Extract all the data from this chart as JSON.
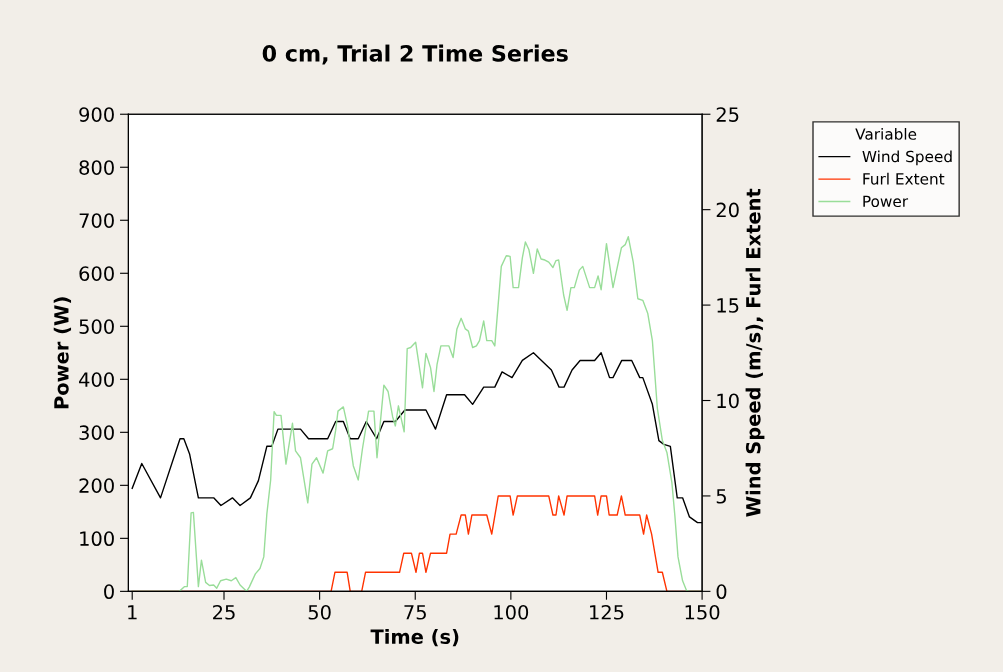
{
  "chart_data": {
    "type": "line",
    "title": "0 cm, Trial 2 Time Series",
    "xlabel": "Time (s)",
    "ylabel": "Power (W)",
    "y2label": "Wind Speed (m/s), Furl Extent",
    "legend_title": "Variable",
    "legend": "top right",
    "xlim": [
      0,
      150
    ],
    "xticks": [
      1,
      25,
      50,
      75,
      100,
      125,
      150
    ],
    "ylim": [
      0,
      900
    ],
    "yticks": [
      0,
      100,
      200,
      300,
      400,
      500,
      600,
      700,
      800,
      900
    ],
    "y2lim": [
      0,
      25
    ],
    "y2ticks": [
      0,
      5,
      10,
      15,
      20,
      25
    ],
    "grid": false,
    "marker": "none",
    "line_style": "solid",
    "series": [
      {
        "name": "Wind Speed",
        "color": "#000000",
        "axis": "y2",
        "x": [
          1,
          3.5,
          8.4,
          13.5,
          14.5,
          16.0,
          18.3,
          22.3,
          24.2,
          27.2,
          29.2,
          31.9,
          34.0,
          36.2,
          37.5,
          39.1,
          45.0,
          47.1,
          52.1,
          54.2,
          56.2,
          58.0,
          60.1,
          62.2,
          64.9,
          66.8,
          69.8,
          72.3,
          77.8,
          80.3,
          83.2,
          87.9,
          90.0,
          92.9,
          95.8,
          97.7,
          100.3,
          103.0,
          105.9,
          108.0,
          110.6,
          112.6,
          113.9,
          116.0,
          118.1,
          121.9,
          123.6,
          125.8,
          126.7,
          129.0,
          131.6,
          133.7,
          134.5,
          137.0,
          138.7,
          140.0,
          141.7,
          143.5,
          144.9,
          146.7,
          148.8,
          150
        ],
        "values": [
          5.4,
          6.7,
          4.9,
          8.0,
          8.0,
          7.2,
          4.9,
          4.9,
          4.5,
          4.9,
          4.5,
          4.9,
          5.8,
          7.6,
          7.6,
          8.5,
          8.5,
          8.0,
          8.0,
          8.9,
          8.9,
          8.0,
          8.0,
          8.9,
          8.0,
          8.9,
          8.9,
          9.5,
          9.5,
          8.5,
          10.3,
          10.3,
          9.8,
          10.7,
          10.7,
          11.5,
          11.2,
          12.1,
          12.5,
          12.1,
          11.6,
          10.7,
          10.7,
          11.6,
          12.1,
          12.1,
          12.5,
          11.2,
          11.2,
          12.1,
          12.1,
          11.2,
          11.2,
          9.8,
          7.9,
          7.7,
          7.6,
          4.9,
          4.9,
          3.9,
          3.6,
          3.6
        ]
      },
      {
        "name": "Furl Extent",
        "color": "#ff3300",
        "axis": "y2",
        "x": [
          1,
          53.0,
          54.0,
          57.2,
          58.0,
          61.0,
          62.0,
          70.9,
          72.0,
          74.0,
          75.2,
          76.1,
          76.9,
          77.8,
          79.0,
          83.2,
          84.1,
          85.7,
          87.0,
          88.1,
          88.9,
          89.8,
          93.7,
          95.0,
          96.7,
          99.8,
          100.6,
          101.7,
          109.9,
          111.0,
          111.8,
          112.5,
          113.9,
          114.7,
          121.9,
          122.7,
          123.6,
          125.0,
          125.7,
          127.8,
          128.9,
          129.9,
          133.7,
          134.7,
          135.5,
          136.8,
          138.5,
          139.6,
          140.8,
          150
        ],
        "values": [
          0,
          0,
          1,
          1,
          0,
          0,
          1,
          1,
          2,
          2,
          1,
          2,
          2,
          1,
          2,
          2,
          3,
          3,
          4,
          4,
          3,
          4,
          4,
          3,
          5,
          5,
          4,
          5,
          5,
          4,
          4,
          5,
          4,
          5,
          5,
          4,
          5,
          5,
          4,
          4,
          5,
          4,
          4,
          3,
          4,
          3,
          1,
          1,
          0,
          0
        ]
      },
      {
        "name": "Power",
        "color": "#99dd99",
        "axis": "y",
        "x": [
          1,
          13.3,
          14.7,
          15.4,
          16.4,
          17.0,
          18.3,
          19.1,
          20.2,
          21.2,
          22.3,
          23.1,
          24.1,
          25.6,
          26.9,
          28.1,
          29.2,
          30.9,
          31.6,
          33.2,
          34.4,
          35.4,
          36.2,
          37.2,
          38.1,
          38.7,
          39.9,
          41.2,
          42.9,
          43.7,
          45.0,
          46.9,
          48.0,
          49.2,
          50.9,
          52.1,
          53.4,
          54.2,
          54.8,
          56.2,
          57.3,
          58.8,
          60.1,
          61.2,
          62.8,
          64.2,
          65.0,
          66.8,
          67.9,
          69.1,
          69.8,
          70.6,
          72.1,
          72.9,
          73.8,
          75.1,
          76.9,
          77.8,
          79.0,
          79.9,
          80.7,
          81.7,
          83.8,
          84.9,
          85.9,
          87.0,
          88.1,
          88.9,
          90.0,
          91.0,
          91.8,
          92.9,
          93.7,
          95.0,
          95.8,
          97.5,
          98.8,
          99.8,
          100.6,
          102.0,
          103.0,
          103.8,
          104.7,
          105.9,
          106.9,
          107.9,
          108.9,
          109.9,
          111.0,
          111.8,
          112.5,
          113.8,
          114.7,
          115.7,
          116.6,
          117.9,
          118.8,
          120.6,
          121.9,
          122.8,
          123.6,
          125.0,
          126.7,
          128.9,
          129.9,
          130.7,
          132.0,
          133.2,
          134.5,
          135.8,
          137.0,
          138.3,
          139.6,
          140.8,
          142.1,
          142.9,
          143.7,
          144.9,
          145.9,
          146.7,
          150
        ],
        "values": [
          0,
          0,
          9,
          9,
          148,
          149,
          9,
          59,
          17,
          11,
          12,
          6,
          20,
          23,
          20,
          26,
          12,
          0,
          8,
          33,
          43,
          65,
          146,
          210,
          339,
          332,
          332,
          240,
          317,
          265,
          252,
          167,
          240,
          252,
          223,
          265,
          269,
          304,
          340,
          348,
          312,
          237,
          210,
          269,
          340,
          340,
          252,
          389,
          377,
          329,
          312,
          350,
          301,
          458,
          460,
          470,
          384,
          449,
          422,
          377,
          428,
          463,
          463,
          441,
          495,
          515,
          495,
          491,
          460,
          463,
          473,
          510,
          473,
          473,
          463,
          613,
          633,
          632,
          573,
          573,
          629,
          659,
          645,
          600,
          646,
          627,
          625,
          621,
          611,
          624,
          625,
          559,
          530,
          573,
          573,
          606,
          613,
          573,
          573,
          595,
          569,
          656,
          573,
          648,
          654,
          669,
          621,
          552,
          549,
          524,
          473,
          345,
          285,
          262,
          205,
          141,
          65,
          20,
          2,
          0,
          0
        ]
      }
    ]
  }
}
